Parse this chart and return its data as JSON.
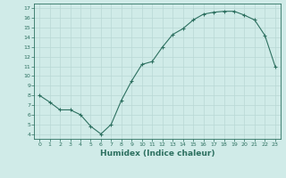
{
  "x": [
    0,
    1,
    2,
    3,
    4,
    5,
    6,
    7,
    8,
    9,
    10,
    11,
    12,
    13,
    14,
    15,
    16,
    17,
    18,
    19,
    20,
    21,
    22,
    23
  ],
  "y": [
    8.0,
    7.3,
    6.5,
    6.5,
    6.0,
    4.8,
    4.0,
    5.0,
    7.5,
    9.5,
    11.2,
    11.5,
    13.0,
    14.3,
    14.9,
    15.8,
    16.4,
    16.6,
    16.7,
    16.7,
    16.3,
    15.8,
    14.2,
    11.0
  ],
  "line_color": "#2d7060",
  "marker_color": "#2d7060",
  "bg_color": "#d0ebe8",
  "grid_color": "#b8d8d4",
  "xlabel": "Humidex (Indice chaleur)",
  "xlim": [
    -0.5,
    23.5
  ],
  "ylim": [
    3.5,
    17.5
  ],
  "yticks": [
    4,
    5,
    6,
    7,
    8,
    9,
    10,
    11,
    12,
    13,
    14,
    15,
    16,
    17
  ],
  "xticks": [
    0,
    1,
    2,
    3,
    4,
    5,
    6,
    7,
    8,
    9,
    10,
    11,
    12,
    13,
    14,
    15,
    16,
    17,
    18,
    19,
    20,
    21,
    22,
    23
  ]
}
